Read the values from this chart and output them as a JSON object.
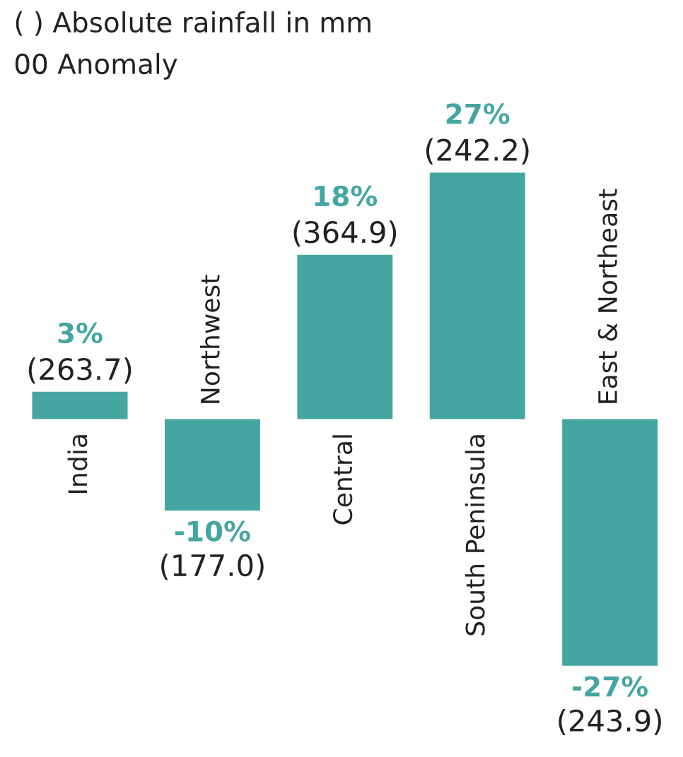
{
  "chart_data": {
    "type": "bar",
    "categories": [
      "India",
      "Northwest",
      "Central",
      "South Peninsula",
      "East & Northeast"
    ],
    "values": [
      3,
      -10,
      18,
      27,
      -27
    ],
    "value_labels": [
      "3%",
      "-10%",
      "18%",
      "27%",
      "-27%"
    ],
    "color": "#45a6a1",
    "annotations": [
      "( ) Absolute rainfall in mm",
      "00 Anomaly",
      {
        "text": "(263.7)",
        "x": "India",
        "y": 3
      },
      {
        "text": "(177.0)",
        "x": "Northwest",
        "y": -10
      },
      {
        "text": "(364.9)",
        "x": "Central",
        "y": 18
      },
      {
        "text": "(242.2)",
        "x": "South Peninsula",
        "y": 27
      },
      {
        "text": "(243.9)",
        "x": "East & Northeast",
        "y": -27
      }
    ]
  }
}
